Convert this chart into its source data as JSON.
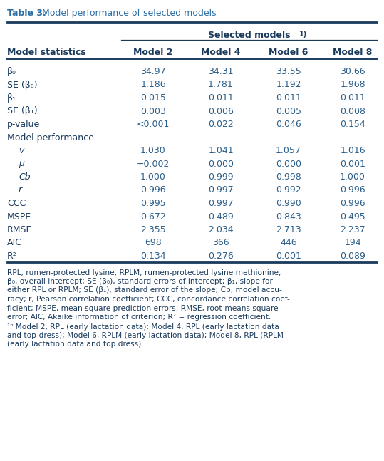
{
  "title_bold": "Table 3.",
  "title_normal": " Model performance of selected models",
  "header_group": "Selected models",
  "header_superscript": "1)",
  "col_headers": [
    "Model 2",
    "Model 4",
    "Model 6",
    "Model 8"
  ],
  "row_label_col": "Model statistics",
  "rows": [
    {
      "label": "β₀",
      "sub": false,
      "italic": false,
      "values": [
        "34.97",
        "34.31",
        "33.55",
        "30.66"
      ]
    },
    {
      "label": "SE (β₀)",
      "sub": false,
      "italic": false,
      "values": [
        "1.186",
        "1.781",
        "1.192",
        "1.968"
      ]
    },
    {
      "label": "β₁",
      "sub": false,
      "italic": false,
      "values": [
        "0.015",
        "0.011",
        "0.011",
        "0.011"
      ]
    },
    {
      "label": "SE (β₁)",
      "sub": false,
      "italic": false,
      "values": [
        "0.003",
        "0.006",
        "0.005",
        "0.008"
      ]
    },
    {
      "label": "p-value",
      "sub": false,
      "italic": false,
      "values": [
        "<0.001",
        "0.022",
        "0.046",
        "0.154"
      ]
    },
    {
      "label": "Model performance",
      "sub": false,
      "italic": false,
      "values": [
        "",
        "",
        "",
        ""
      ],
      "section": true
    },
    {
      "label": "v",
      "sub": true,
      "italic": true,
      "values": [
        "1.030",
        "1.041",
        "1.057",
        "1.016"
      ]
    },
    {
      "label": "μ",
      "sub": true,
      "italic": true,
      "values": [
        "−0.002",
        "0.000",
        "0.000",
        "0.001"
      ]
    },
    {
      "label": "Cb",
      "sub": true,
      "italic": true,
      "values": [
        "1.000",
        "0.999",
        "0.998",
        "1.000"
      ]
    },
    {
      "label": "r",
      "sub": true,
      "italic": true,
      "values": [
        "0.996",
        "0.997",
        "0.992",
        "0.996"
      ]
    },
    {
      "label": "CCC",
      "sub": false,
      "italic": false,
      "values": [
        "0.995",
        "0.997",
        "0.990",
        "0.996"
      ]
    },
    {
      "label": "MSPE",
      "sub": false,
      "italic": false,
      "values": [
        "0.672",
        "0.489",
        "0.843",
        "0.495"
      ]
    },
    {
      "label": "RMSE",
      "sub": false,
      "italic": false,
      "values": [
        "2.355",
        "2.034",
        "2.713",
        "2.237"
      ]
    },
    {
      "label": "AIC",
      "sub": false,
      "italic": false,
      "values": [
        "698",
        "366",
        "446",
        "194"
      ]
    },
    {
      "label": "R²",
      "sub": false,
      "italic": false,
      "values": [
        "0.134",
        "0.276",
        "0.001",
        "0.089"
      ]
    }
  ],
  "header_color": "#1a3a5c",
  "text_color": "#2c5f8a",
  "line_color": "#1a3a5c",
  "bg_color": "#ffffff",
  "title_color": "#2c6fa6"
}
